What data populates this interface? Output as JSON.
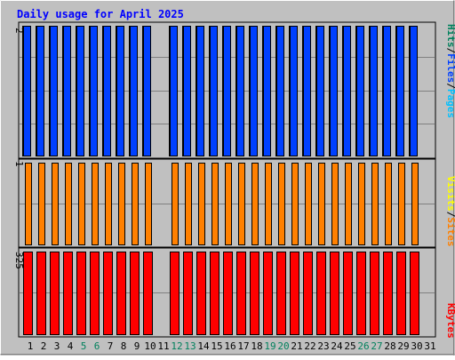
{
  "title": "Daily usage for April 2025",
  "legend": {
    "top": [
      {
        "text": "Hits",
        "color": "#00805c"
      },
      {
        "text": "/",
        "color": "#000000"
      },
      {
        "text": "Files",
        "color": "#0040ff"
      },
      {
        "text": "/",
        "color": "#000000"
      },
      {
        "text": "Pages",
        "color": "#00c0ff"
      }
    ],
    "middle": [
      {
        "text": "Visits",
        "color": "#ffff00"
      },
      {
        "text": "/",
        "color": "#000000"
      },
      {
        "text": "Sites",
        "color": "#ff8000"
      }
    ],
    "bottom": [
      {
        "text": "KBytes",
        "color": "#ff0000"
      }
    ]
  },
  "colors": {
    "background": "#c0c0c0",
    "title": "#0000ff",
    "hits": "#00805c",
    "files": "#0040ff",
    "pages": "#00c0ff",
    "visits": "#ffff00",
    "sites": "#ff8000",
    "kbytes": "#ff0000",
    "weekend_label": "#00805c",
    "weekday_label": "#000000"
  },
  "chart_data": [
    {
      "type": "bar",
      "panel": "hits-files-pages",
      "ylim": [
        0,
        2
      ],
      "y_tick_label": "2",
      "categories": [
        "1",
        "2",
        "3",
        "4",
        "5",
        "6",
        "7",
        "8",
        "9",
        "10",
        "11",
        "12",
        "13",
        "14",
        "15",
        "16",
        "17",
        "18",
        "19",
        "20",
        "21",
        "22",
        "23",
        "24",
        "25",
        "26",
        "27",
        "28",
        "29",
        "30",
        "31"
      ],
      "weekend_days": [
        "5",
        "6",
        "12",
        "13",
        "19",
        "20",
        "26",
        "27"
      ],
      "series": [
        {
          "name": "Hits",
          "values": [
            2,
            2,
            2,
            2,
            2,
            2,
            2,
            2,
            2,
            2,
            0,
            2,
            2,
            2,
            2,
            2,
            2,
            2,
            2,
            2,
            2,
            2,
            2,
            2,
            2,
            2,
            2,
            2,
            2,
            2,
            0
          ]
        },
        {
          "name": "Files",
          "values": [
            2,
            2,
            2,
            2,
            2,
            2,
            2,
            2,
            2,
            2,
            0,
            2,
            2,
            2,
            2,
            2,
            2,
            2,
            2,
            2,
            2,
            2,
            2,
            2,
            2,
            2,
            2,
            2,
            2,
            2,
            0
          ]
        },
        {
          "name": "Pages",
          "values": [
            0,
            0,
            0,
            0,
            0,
            0,
            0,
            0,
            0,
            0,
            0,
            0,
            0,
            0,
            0,
            0,
            0,
            0,
            0,
            0,
            0,
            0,
            0,
            0,
            0,
            0,
            0,
            0,
            0,
            0,
            0
          ]
        }
      ]
    },
    {
      "type": "bar",
      "panel": "visits-sites",
      "ylim": [
        0,
        1
      ],
      "y_tick_label": "1",
      "series": [
        {
          "name": "Visits",
          "values": [
            0,
            0,
            0,
            0,
            0,
            0,
            0,
            0,
            0,
            0,
            0,
            0,
            0,
            0,
            0,
            0,
            0,
            0,
            0,
            0,
            0,
            0,
            0,
            0,
            0,
            0,
            0,
            0,
            0,
            0,
            0
          ]
        },
        {
          "name": "Sites",
          "values": [
            1,
            1,
            1,
            1,
            1,
            1,
            1,
            1,
            1,
            1,
            0,
            1,
            1,
            1,
            1,
            1,
            1,
            1,
            1,
            1,
            1,
            1,
            1,
            1,
            1,
            1,
            1,
            1,
            1,
            1,
            0
          ]
        }
      ]
    },
    {
      "type": "bar",
      "panel": "kbytes",
      "ylim": [
        0,
        325
      ],
      "y_tick_label": "325",
      "series": [
        {
          "name": "KBytes",
          "values": [
            325,
            325,
            325,
            325,
            325,
            325,
            325,
            325,
            325,
            325,
            0,
            325,
            325,
            325,
            325,
            325,
            325,
            325,
            325,
            325,
            325,
            325,
            325,
            325,
            325,
            325,
            325,
            325,
            325,
            325,
            0
          ]
        }
      ]
    }
  ]
}
